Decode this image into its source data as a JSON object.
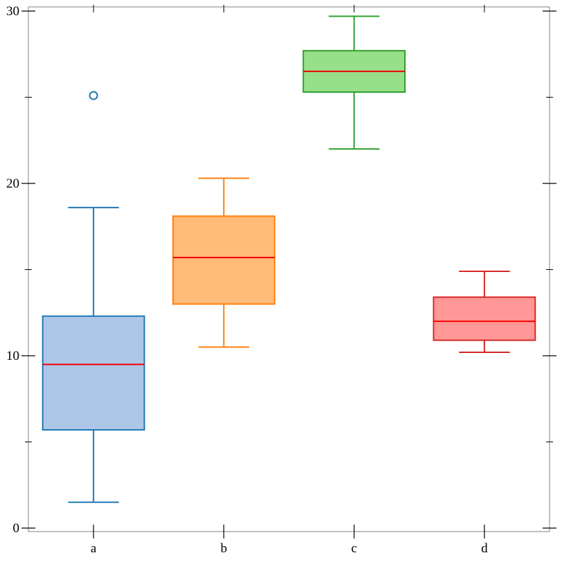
{
  "chart_data": {
    "type": "box",
    "title": "",
    "xlabel": "",
    "ylabel": "",
    "ylim": [
      0,
      30
    ],
    "yticks_major": [
      0,
      10,
      20,
      30
    ],
    "yticks_minor": [
      5,
      15,
      25
    ],
    "categories": [
      "a",
      "b",
      "c",
      "d"
    ],
    "boxes": [
      {
        "label": "a",
        "whisker_low": 1.5,
        "q1": 5.7,
        "median": 9.5,
        "q3": 12.3,
        "whisker_high": 18.6,
        "outliers": [
          25.1
        ],
        "color": "#1f77b4",
        "fill": "#aec7e8"
      },
      {
        "label": "b",
        "whisker_low": 10.5,
        "q1": 13.0,
        "median": 15.7,
        "q3": 18.1,
        "whisker_high": 20.3,
        "outliers": [],
        "color": "#ff7f0e",
        "fill": "#ffbb78"
      },
      {
        "label": "c",
        "whisker_low": 22.0,
        "q1": 25.3,
        "median": 26.5,
        "q3": 27.7,
        "whisker_high": 29.7,
        "outliers": [],
        "color": "#2ca02c",
        "fill": "#98df8a"
      },
      {
        "label": "d",
        "whisker_low": 10.2,
        "q1": 10.9,
        "median": 12.0,
        "q3": 13.4,
        "whisker_high": 14.9,
        "outliers": [],
        "color": "#d62728",
        "fill": "#ff9896"
      }
    ],
    "median_color": "#ee0000",
    "grid": false,
    "legend": "none"
  }
}
